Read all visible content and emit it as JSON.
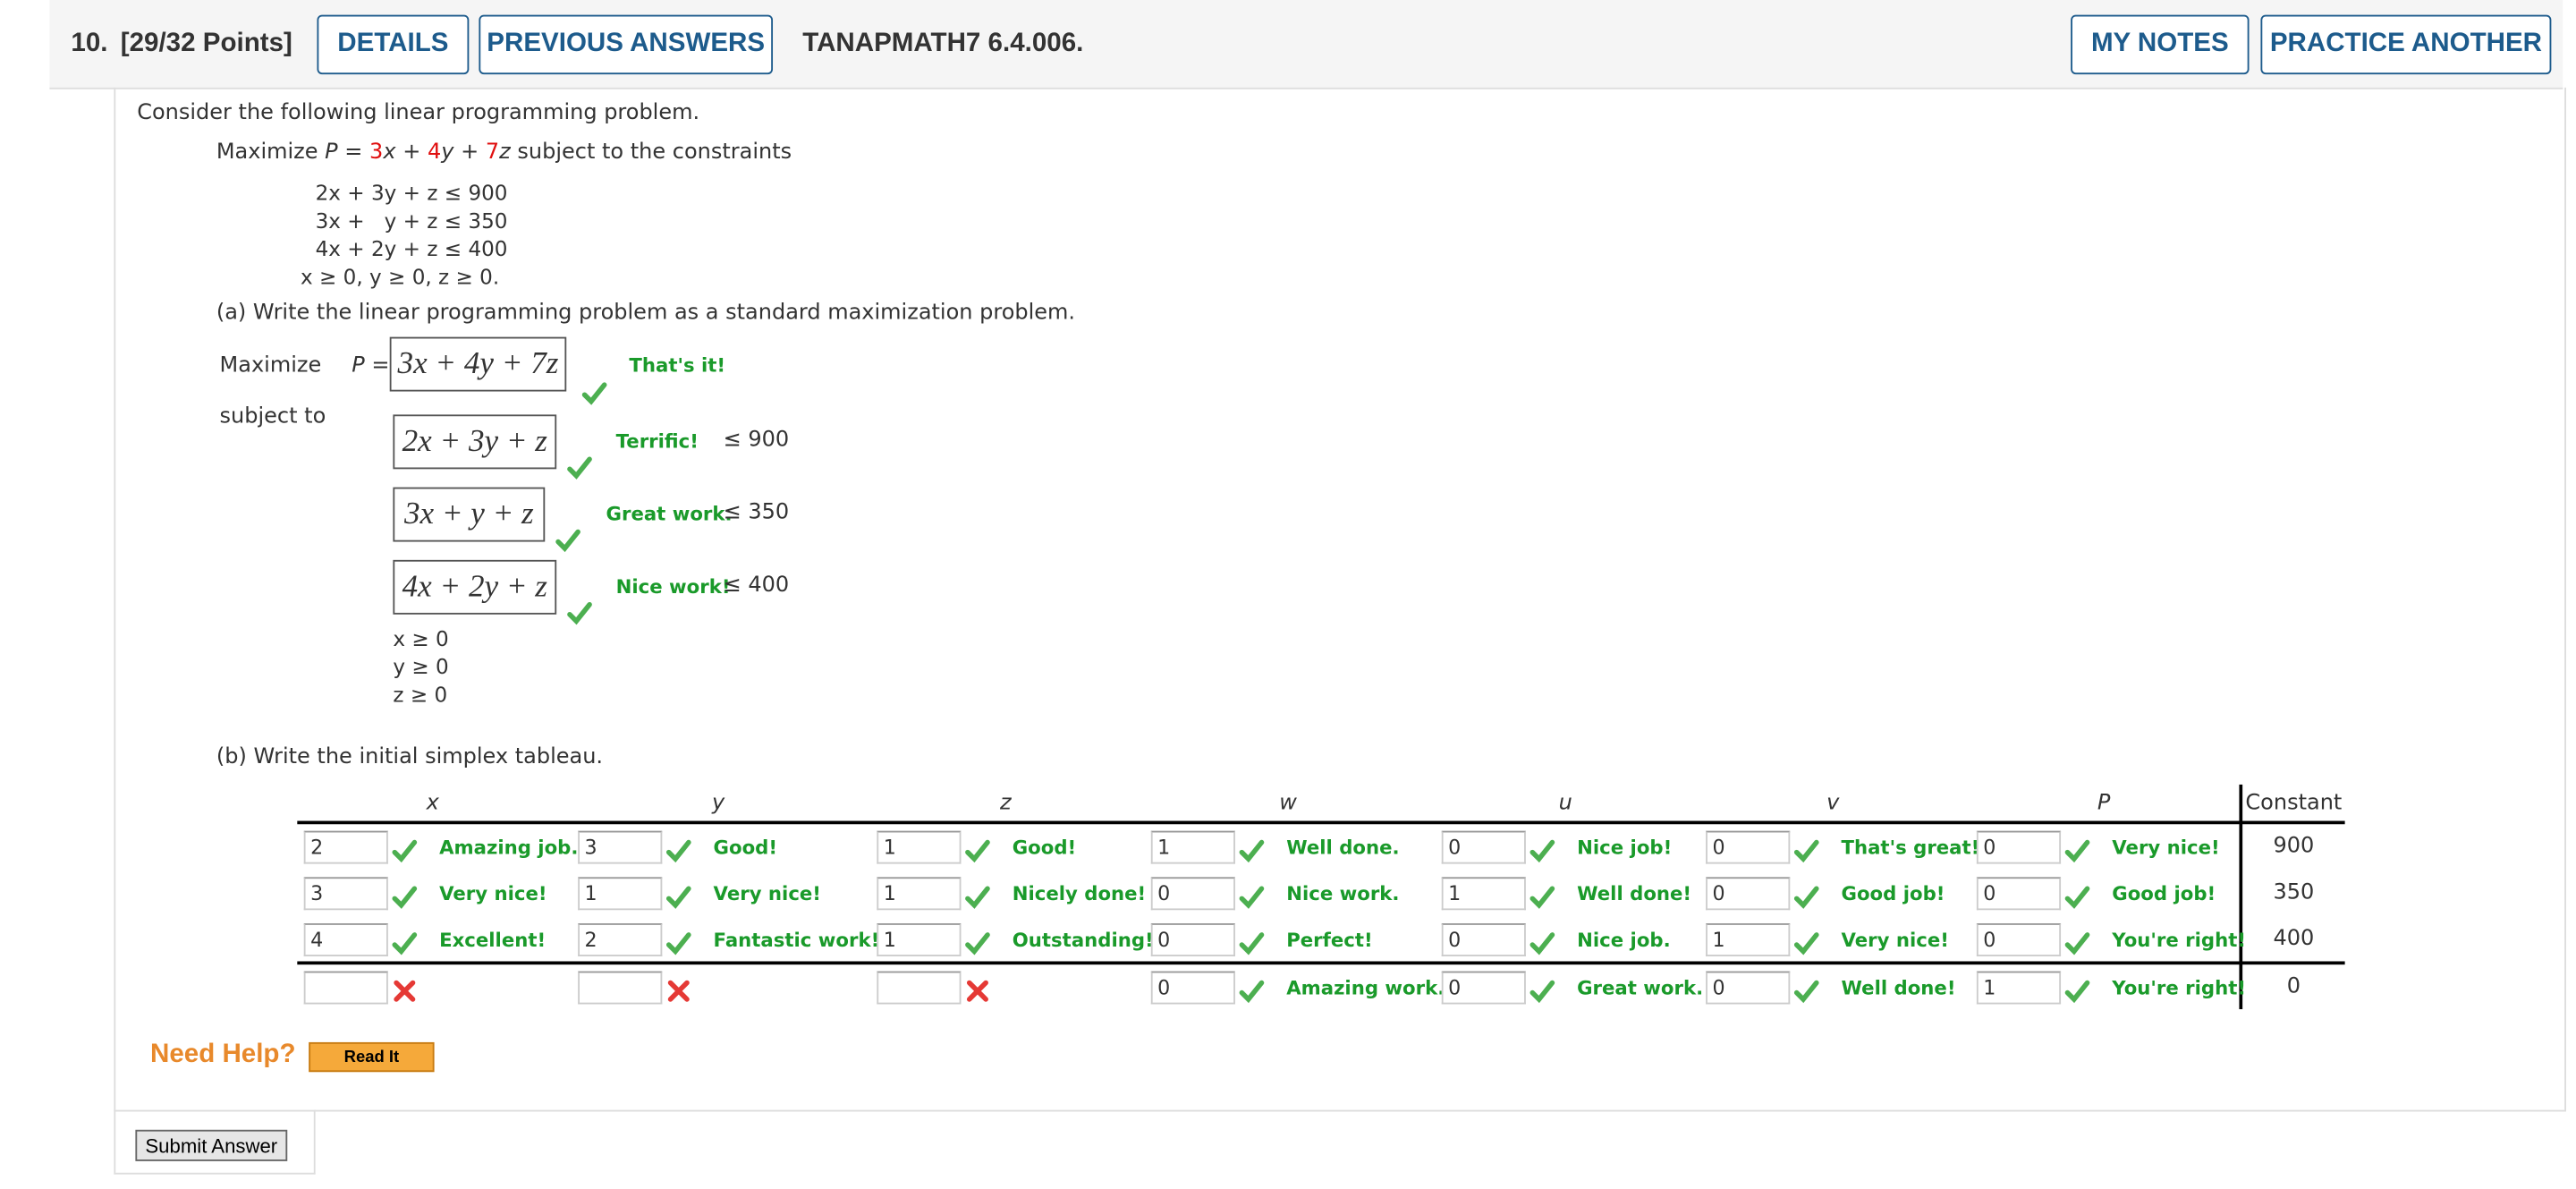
{
  "header": {
    "number": "10.",
    "points": "[29/32 Points]",
    "buttons": [
      "DETAILS",
      "PREVIOUS ANSWERS"
    ],
    "code": "TANAPMATH7 6.4.006.",
    "right_buttons": [
      "MY NOTES",
      "PRACTICE ANOTHER"
    ]
  },
  "intro": "Consider the following linear programming problem.",
  "objective": [
    {
      "text": "Maximize "
    },
    {
      "text": "P",
      "style": "italic"
    },
    {
      "text": " = "
    },
    {
      "text": "3",
      "style": "red"
    },
    {
      "text": "x",
      "style": "italic"
    },
    {
      "text": " + "
    },
    {
      "text": "4",
      "style": "red"
    },
    {
      "text": "y",
      "style": "italic"
    },
    {
      "text": " + "
    },
    {
      "text": "7",
      "style": "red"
    },
    {
      "text": "z",
      "style": "italic"
    },
    {
      "text": " subject to the constraints"
    }
  ],
  "constraints": [
    "2x + 3y + z ≤ 900",
    "3x +   y + z ≤ 350",
    "4x + 2y + z ≤ 400",
    "x ≥ 0, y ≥ 0, z ≥ 0."
  ],
  "part_a": {
    "prompt": "(a) Write the linear programming problem as a standard maximization problem.",
    "maximize": "Maximize",
    "p_label": "P =",
    "objective": {
      "answer": "3x + 4y + 7z",
      "feedback": "That's it!"
    },
    "subject_to": "subject to",
    "rows": [
      {
        "answer": "2x + 3y + z",
        "feedback": "Terrific!",
        "bound": "≤ 900"
      },
      {
        "answer": "3x + y + z",
        "feedback": "Great work.",
        "bound": "≤ 350"
      },
      {
        "answer": "4x + 2y + z",
        "feedback": "Nice work!",
        "bound": "≤ 400"
      }
    ],
    "nonneg": [
      "x ≥ 0",
      "y ≥ 0",
      "z ≥ 0"
    ]
  },
  "part_b": {
    "prompt": "(b) Write the initial simplex tableau.",
    "columns": [
      "x",
      "y",
      "z",
      "w",
      "u",
      "v",
      "P"
    ],
    "constant_header": "Constant",
    "rows": [
      {
        "cells": [
          {
            "value": 2,
            "feedback": "Amazing job.",
            "status": "correct"
          },
          {
            "value": 3,
            "feedback": "Good!",
            "status": "correct"
          },
          {
            "value": 1,
            "feedback": "Good!",
            "status": "correct"
          },
          {
            "value": 1,
            "feedback": "Well done.",
            "status": "correct"
          },
          {
            "value": 0,
            "feedback": "Nice job!",
            "status": "correct"
          },
          {
            "value": 0,
            "feedback": "That's great!",
            "status": "correct"
          },
          {
            "value": 0,
            "feedback": "Very nice!",
            "status": "correct"
          }
        ],
        "constant": 900
      },
      {
        "cells": [
          {
            "value": 3,
            "feedback": "Very nice!",
            "status": "correct"
          },
          {
            "value": 1,
            "feedback": "Very nice!",
            "status": "correct"
          },
          {
            "value": 1,
            "feedback": "Nicely done!",
            "status": "correct"
          },
          {
            "value": 0,
            "feedback": "Nice work.",
            "status": "correct"
          },
          {
            "value": 1,
            "feedback": "Well done!",
            "status": "correct"
          },
          {
            "value": 0,
            "feedback": "Good job!",
            "status": "correct"
          },
          {
            "value": 0,
            "feedback": "Good job!",
            "status": "correct"
          }
        ],
        "constant": 350
      },
      {
        "cells": [
          {
            "value": 4,
            "feedback": "Excellent!",
            "status": "correct"
          },
          {
            "value": 2,
            "feedback": "Fantastic work!",
            "status": "correct"
          },
          {
            "value": 1,
            "feedback": "Outstanding!",
            "status": "correct"
          },
          {
            "value": 0,
            "feedback": "Perfect!",
            "status": "correct"
          },
          {
            "value": 0,
            "feedback": "Nice job.",
            "status": "correct"
          },
          {
            "value": 1,
            "feedback": "Very nice!",
            "status": "correct"
          },
          {
            "value": 0,
            "feedback": "You're right!",
            "status": "correct"
          }
        ],
        "constant": 400
      },
      {
        "cells": [
          {
            "status": "wrong"
          },
          {
            "status": "wrong"
          },
          {
            "status": "wrong"
          },
          {
            "value": 0,
            "feedback": "Amazing work.",
            "status": "correct"
          },
          {
            "value": 0,
            "feedback": "Great work.",
            "status": "correct"
          },
          {
            "value": 0,
            "feedback": "Well done!",
            "status": "correct"
          },
          {
            "value": 1,
            "feedback": "You're right!",
            "status": "correct"
          }
        ],
        "constant": 0
      }
    ]
  },
  "help": {
    "label": "Need Help?",
    "button": "Read It"
  },
  "submit": "Submit Answer"
}
